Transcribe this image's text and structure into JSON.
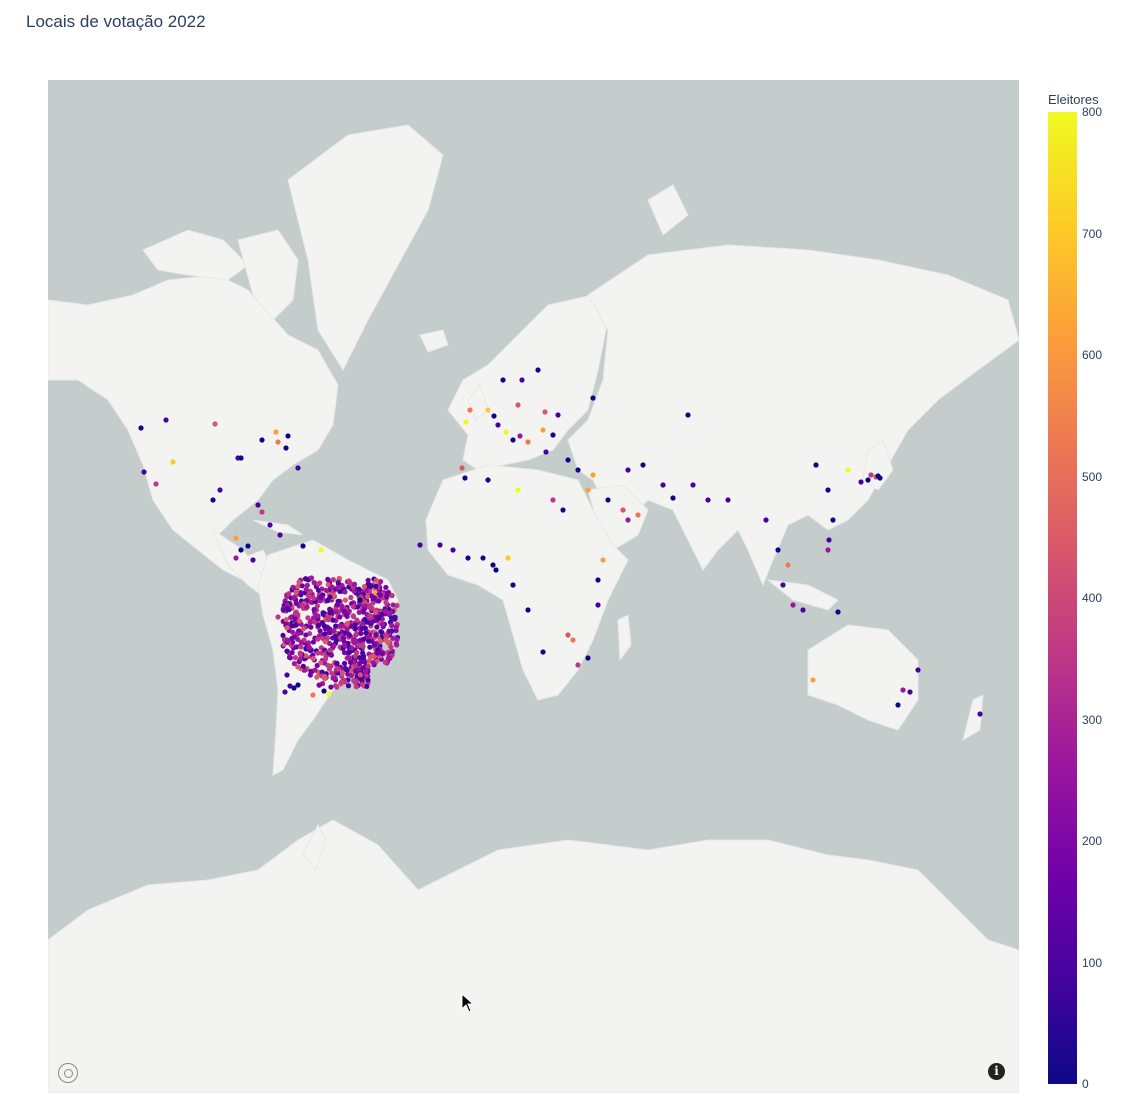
{
  "title": "Locais de votação 2022",
  "colorbar": {
    "title": "Eleitores",
    "ticks": [
      "0",
      "100",
      "200",
      "300",
      "400",
      "500",
      "600",
      "700",
      "800"
    ],
    "range": [
      0,
      800
    ]
  },
  "colors": {
    "ocean": "#c5cdcc",
    "land": "#f3f3f2",
    "scale": [
      "#0d0887",
      "#46039f",
      "#7201a8",
      "#9c179e",
      "#bd3786",
      "#d8576b",
      "#ed7953",
      "#fb9f3a",
      "#fdca26",
      "#f0f921"
    ]
  },
  "icons": {
    "logo": "mapbox-logo-icon",
    "info": "info-icon",
    "cursor": "mouse-pointer-icon"
  },
  "info_glyph": "i"
}
